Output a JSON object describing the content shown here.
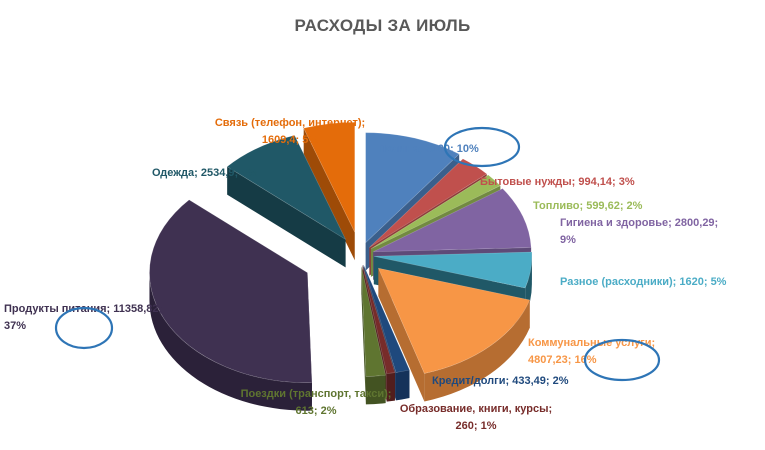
{
  "chart_data": {
    "type": "pie",
    "title": "РАСХОДЫ ЗА ИЮЛЬ",
    "slices": [
      {
        "name": "Полина",
        "value": 3100,
        "percent": "10%",
        "value_text": "3100",
        "color": "#4f81bd",
        "side": "#3a5f8c",
        "label_lines": [
          "Полина; 3100; 10%"
        ]
      },
      {
        "name": "Бытовые нужды",
        "value": 994.14,
        "percent": "3%",
        "value_text": "994,14",
        "color": "#c0504d",
        "side": "#8e3b39",
        "label_lines": [
          "Бытовые нужды; 994,14; 3%"
        ]
      },
      {
        "name": "Топливо",
        "value": 599.62,
        "percent": "2%",
        "value_text": "599,62",
        "color": "#9bbb59",
        "side": "#728a41",
        "label_lines": [
          "Топливо; 599,62; 2%"
        ]
      },
      {
        "name": "Гигиена и здоровье",
        "value": 2800.29,
        "percent": "9%",
        "value_text": "2800,29",
        "color": "#8064a2",
        "side": "#5e4a78",
        "label_lines": [
          "Гигиена и здоровье; 2800,29;",
          "9%"
        ]
      },
      {
        "name": "Разное (расходники)",
        "value": 1620,
        "percent": "5%",
        "value_text": "1620",
        "color": "#4bacc6",
        "side": "#205867",
        "label_lines": [
          "Разное (расходники); 1620; 5%"
        ]
      },
      {
        "name": "Коммунальные услуги",
        "value": 4807.23,
        "percent": "16%",
        "value_text": "4807,23",
        "color": "#f79646",
        "side": "#b66d31",
        "label_lines": [
          "Коммунальные услуги;",
          "4807,23; 16%"
        ]
      },
      {
        "name": "Кредит/долги",
        "value": 433.49,
        "percent": "2%",
        "value_text": "433,49",
        "color": "#1f497d",
        "side": "#15325a",
        "label_lines": [
          "Кредит/долги; 433,49; 2%"
        ]
      },
      {
        "name": "Образование, книги, курсы",
        "value": 260,
        "percent": "1%",
        "value_text": "260",
        "color": "#772c2a",
        "side": "#521e1d",
        "label_lines": [
          "Образование, книги, курсы;",
          "260; 1%"
        ]
      },
      {
        "name": "Поездки (транспорт, такси)",
        "value": 613,
        "percent": "2%",
        "value_text": "613",
        "color": "#5f7530",
        "side": "#435322",
        "label_lines": [
          "Поездки (транспорт, такси);",
          "613; 2%"
        ]
      },
      {
        "name": "Продукты питания",
        "value": 11358.82,
        "percent": "37%",
        "value_text": "11358,82",
        "color": "#3f3151",
        "side": "#2b2139",
        "label_lines": [
          "Продукты питания; 11358,82;",
          "37%"
        ]
      },
      {
        "name": "Одежда",
        "value": 2534.9,
        "percent": "8%",
        "value_text": "2534,9",
        "color": "#205867",
        "side": "#153b45",
        "label_lines": [
          "Одежда; 2534,9; 8%"
        ]
      },
      {
        "name": "Связь (телефон, интернет)",
        "value": 1609.4,
        "percent": "5%",
        "value_text": "1609,4",
        "color": "#e46c0a",
        "side": "#9e4b07",
        "label_lines": [
          "Связь (телефон, интернет);",
          "1609,4; 5%"
        ]
      }
    ],
    "label_color_note": "labels drawn in slice colors",
    "highlight_color": "#2e75b6",
    "highlighted_labels": [
      "Полина",
      "Коммунальные услуги",
      "Продукты питания"
    ]
  }
}
